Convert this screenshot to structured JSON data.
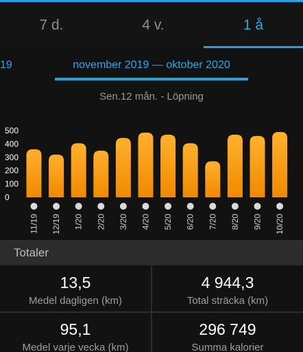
{
  "tabs": [
    {
      "label": "7 d.",
      "active": false
    },
    {
      "label": "4 v.",
      "active": false
    },
    {
      "label": "1 å",
      "active": true
    }
  ],
  "period": {
    "prev_label": "19",
    "label": "november 2019 — oktober 2020"
  },
  "subtitle": "Sen.12 mån. - Löpning",
  "colors": {
    "accent": "#2aa0e0",
    "bar_top": "#ffb02e",
    "bar_bottom": "#f08a00",
    "background": "#121212"
  },
  "chart_data": {
    "type": "bar",
    "title": "",
    "xlabel": "",
    "ylabel": "",
    "categories": [
      "11/19",
      "12/19",
      "1/20",
      "2/20",
      "3/20",
      "4/20",
      "5/20",
      "6/20",
      "7/20",
      "8/20",
      "9/20",
      "10/20"
    ],
    "values": [
      360,
      320,
      405,
      350,
      445,
      485,
      470,
      405,
      270,
      470,
      460,
      490
    ],
    "yticks": [
      0,
      100,
      200,
      300,
      400,
      500
    ],
    "ylim": [
      0,
      500
    ],
    "grid": false,
    "legend": "none"
  },
  "totals": {
    "header": "Totaler",
    "stats": [
      {
        "value": "13,5",
        "label": "Medel dagligen (km)"
      },
      {
        "value": "4 944,3",
        "label": "Total sträcka (km)"
      },
      {
        "value": "95,1",
        "label": "Medel varje vecka (km)"
      },
      {
        "value": "296 749",
        "label": "Summa kalorier"
      }
    ]
  }
}
